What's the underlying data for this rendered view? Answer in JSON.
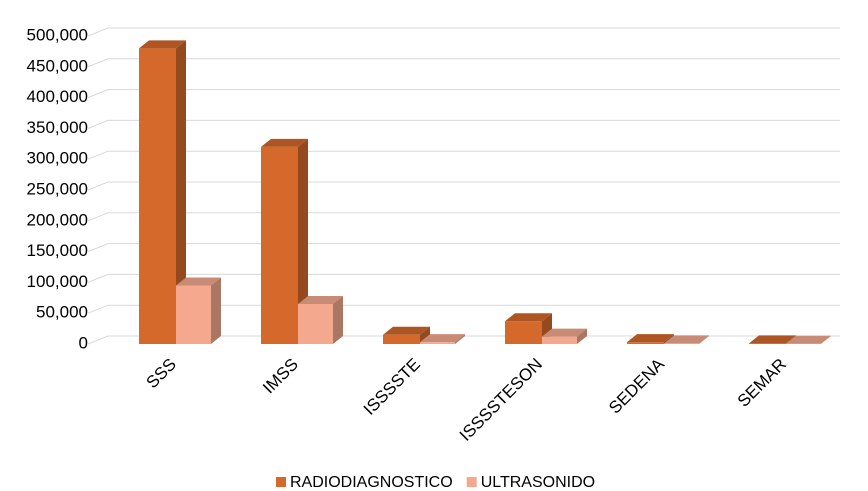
{
  "chart_data": {
    "type": "bar3d",
    "categories": [
      "SSS",
      "IMSS",
      "ISSSSTE",
      "ISSSSTESON",
      "SEDENA",
      "SEMAR"
    ],
    "series": [
      {
        "name": "RADIODIAGNOSTICO",
        "color": "#d4692b",
        "values": [
          480000,
          320000,
          15000,
          37000,
          3000,
          1000
        ]
      },
      {
        "name": "ULTRASONIDO",
        "color": "#f4a98f",
        "values": [
          95000,
          65000,
          3000,
          12000,
          1000,
          500
        ]
      }
    ],
    "ylim": [
      0,
      500000
    ],
    "yticks": [
      0,
      {
        "value": 50000,
        "label": "50,000"
      },
      {
        "value": 100000,
        "label": "100,000"
      },
      {
        "value": 150000,
        "label": "150,000"
      },
      {
        "value": 200000,
        "label": "200,000"
      },
      {
        "value": 250000,
        "label": "250,000"
      },
      {
        "value": 300000,
        "label": "300,000"
      },
      {
        "value": 350000,
        "label": "350,000"
      },
      {
        "value": 400000,
        "label": "400,000"
      },
      {
        "value": 450000,
        "label": "450,000"
      },
      {
        "value": 500000,
        "label": "500,000"
      }
    ],
    "grid": true,
    "legend": "bottom"
  }
}
